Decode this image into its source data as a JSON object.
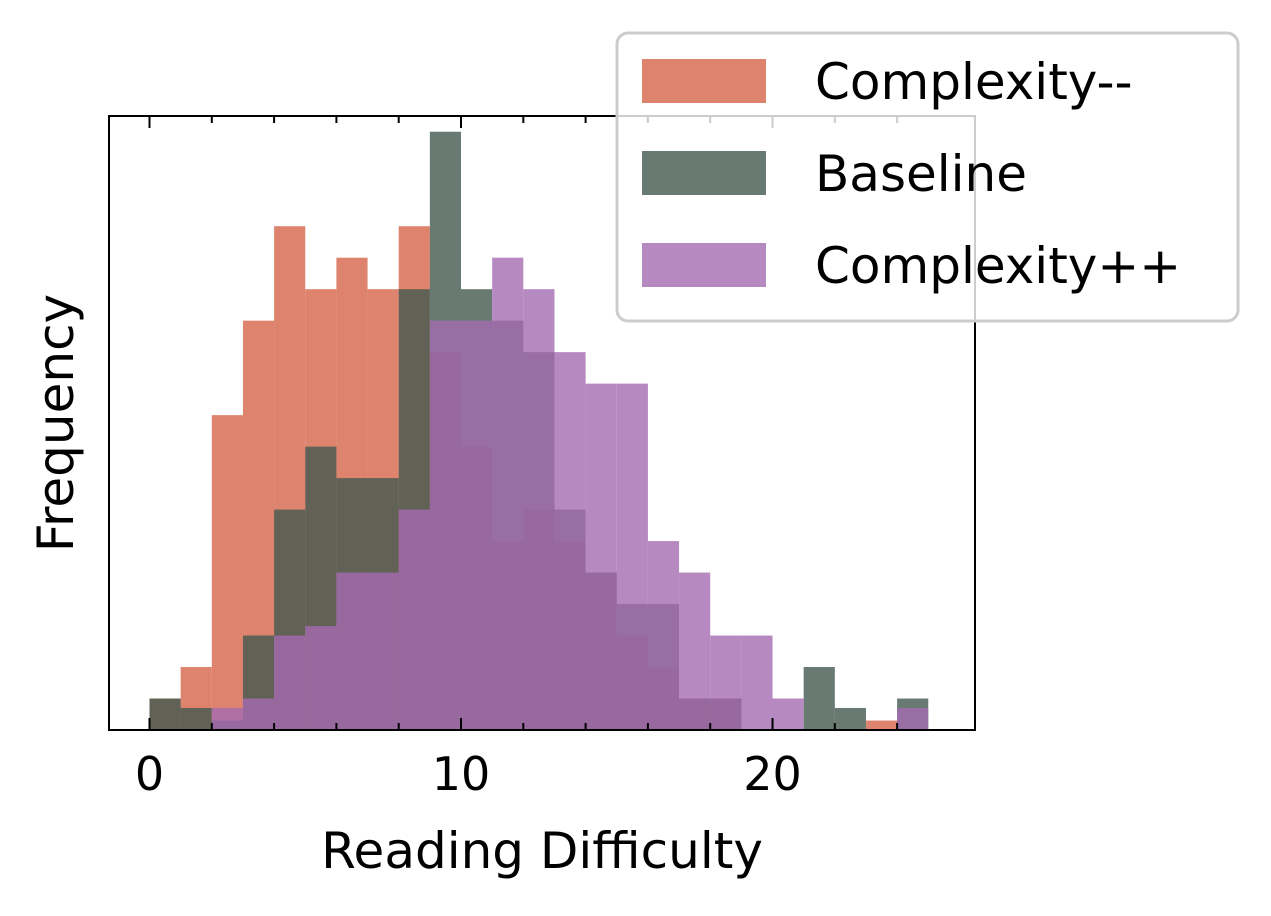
{
  "chart_data": {
    "type": "histogram",
    "xlabel": "Reading Difficulty",
    "ylabel": "Frequency",
    "xlim": [
      -1.3,
      26.5
    ],
    "ylim": [
      0,
      19.5
    ],
    "x_ticks": [
      0,
      10,
      20
    ],
    "x_tick_labels": [
      "0",
      "10",
      "20"
    ],
    "y_tick_labels_shown": false,
    "grid": false,
    "legend_position": "top-right",
    "bin_width": 1,
    "bin_starts": [
      0,
      1,
      2,
      3,
      4,
      5,
      6,
      7,
      8,
      9,
      10,
      11,
      12,
      13,
      14,
      15,
      16,
      17,
      18,
      19,
      20,
      21,
      22,
      23,
      24
    ],
    "series": [
      {
        "name": "Complexity--",
        "color": "#d4644a",
        "opacity": 0.8,
        "values": [
          1,
          2,
          10,
          13,
          16,
          14,
          15,
          14,
          16,
          12,
          9,
          6,
          7,
          6,
          5,
          3,
          2,
          1,
          1,
          0,
          0,
          0,
          0,
          0.3,
          0
        ]
      },
      {
        "name": "Baseline",
        "color": "#44594f",
        "opacity": 0.8,
        "values": [
          1,
          0.7,
          0.3,
          3,
          7,
          9,
          8,
          8,
          14,
          19,
          14,
          13,
          12,
          7,
          5,
          4,
          4,
          1,
          1,
          0,
          0,
          2,
          0.7,
          0,
          1
        ]
      },
      {
        "name": "Complexity++",
        "color": "#a56bb1",
        "opacity": 0.8,
        "values": [
          0,
          0,
          0.7,
          1,
          3,
          3.3,
          5,
          5,
          7,
          13,
          13,
          15,
          14,
          12,
          11,
          11,
          6,
          5,
          3,
          3,
          1,
          0,
          0,
          0,
          0.7
        ]
      }
    ]
  }
}
